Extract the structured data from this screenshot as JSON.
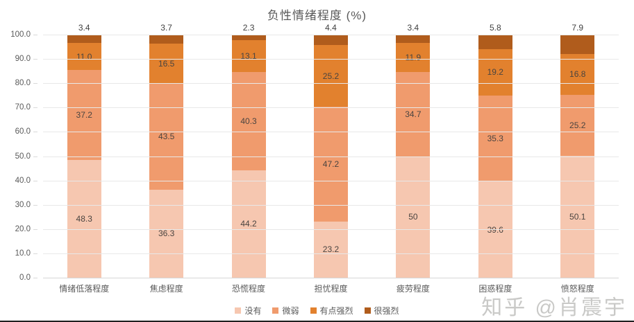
{
  "chart_data": {
    "type": "bar",
    "stacked": true,
    "title": "负性情绪程度 (%)",
    "xlabel": "",
    "ylabel": "",
    "categories": [
      "情绪低落程度",
      "焦虑程度",
      "恐慌程度",
      "担忧程度",
      "疲劳程度",
      "困惑程度",
      "愤怒程度"
    ],
    "series": [
      {
        "name": "没有",
        "color": "#f6c7b0",
        "values": [
          48.3,
          36.3,
          44.2,
          23.2,
          50,
          39.6,
          50.1
        ],
        "labels": [
          "48.3",
          "36.3",
          "44.2",
          "23.2",
          "50",
          "39.6",
          "50.1"
        ]
      },
      {
        "name": "微弱",
        "color": "#f09b6d",
        "values": [
          37.2,
          43.5,
          40.3,
          47.2,
          34.7,
          35.3,
          25.2
        ],
        "labels": [
          "37.2",
          "43.5",
          "40.3",
          "47.2",
          "34.7",
          "35.3",
          "25.2"
        ]
      },
      {
        "name": "有点强烈",
        "color": "#e2812e",
        "values": [
          11.0,
          16.5,
          13.1,
          25.2,
          11.9,
          19.2,
          16.8
        ],
        "labels": [
          "11.0",
          "16.5",
          "13.1",
          "25.2",
          "11.9",
          "19.2",
          "16.8"
        ]
      },
      {
        "name": "很强烈",
        "color": "#b05c1c",
        "values": [
          3.4,
          3.7,
          2.3,
          4.4,
          3.4,
          5.8,
          7.9
        ],
        "labels": [
          "3.4",
          "3.7",
          "2.3",
          "4.4",
          "3.4",
          "5.8",
          "7.9"
        ]
      }
    ],
    "y_axis": {
      "min": 0,
      "max": 100,
      "step": 10,
      "tick_labels": [
        "0.0",
        "10.0",
        "20.0",
        "30.0",
        "40.0",
        "50.0",
        "60.0",
        "70.0",
        "80.0",
        "90.0",
        "100.0"
      ]
    },
    "legend": {
      "position": "bottom",
      "entries": [
        "没有",
        "微弱",
        "有点强烈",
        "很强烈"
      ]
    },
    "grid": true
  },
  "watermark": {
    "text": "知乎 @肖震宇"
  }
}
